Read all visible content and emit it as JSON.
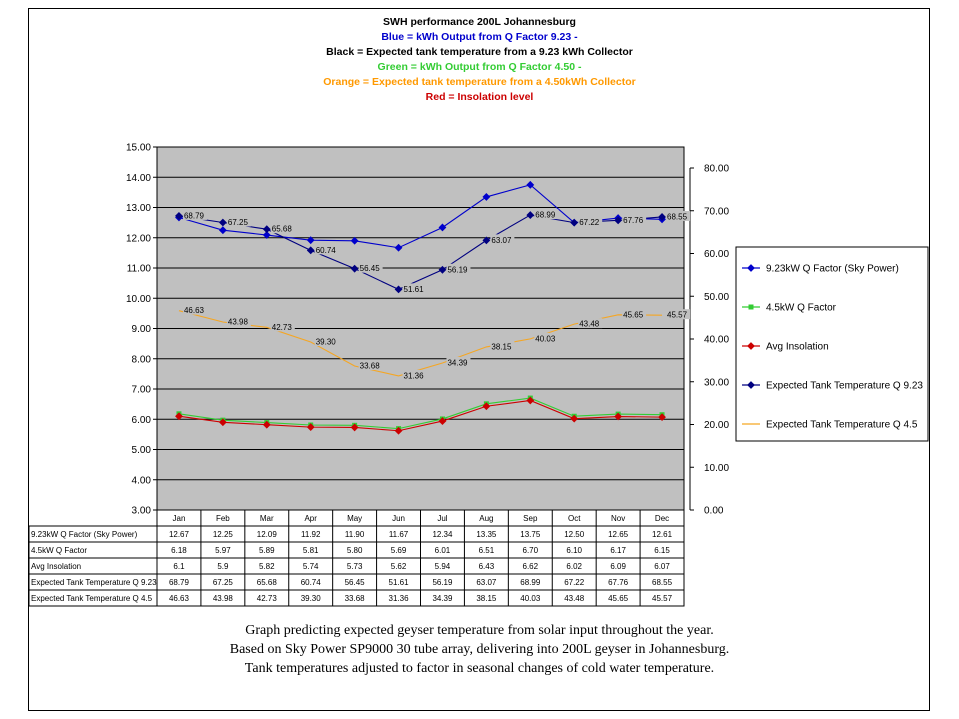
{
  "colors": {
    "blue": "#0000cc",
    "black": "#000000",
    "green": "#33cc33",
    "orange": "#ff9900",
    "red": "#cc0000",
    "plot_bg": "#c0c0c0",
    "navy": "#000080",
    "light_orange": "#f5a623"
  },
  "chart_data": {
    "type": "line",
    "title_lines": [
      {
        "text": "SWH performance 200L Johannesburg",
        "color": "black"
      },
      {
        "text": "Blue = kWh Output from Q Factor 9.23 -",
        "color": "blue"
      },
      {
        "text": "Black = Expected tank temperature from a 9.23 kWh Collector",
        "color": "black"
      },
      {
        "text": "Green = kWh Output from Q Factor 4.50 -",
        "color": "green"
      },
      {
        "text": "Orange = Expected tank temperature from a 4.50kWh Collector",
        "color": "orange"
      },
      {
        "text": "Red = Insolation level",
        "color": "red"
      }
    ],
    "categories": [
      "Jan",
      "Feb",
      "Mar",
      "Apr",
      "May",
      "Jun",
      "Jul",
      "Aug",
      "Sep",
      "Oct",
      "Nov",
      "Dec"
    ],
    "y_left": {
      "min": 3,
      "max": 15,
      "step": 1,
      "ticks": [
        "3.00",
        "4.00",
        "5.00",
        "6.00",
        "7.00",
        "8.00",
        "9.00",
        "10.00",
        "11.00",
        "12.00",
        "13.00",
        "14.00",
        "15.00"
      ]
    },
    "y_right": {
      "min": 0,
      "max": 80,
      "step": 10,
      "ticks": [
        "0.00",
        "10.00",
        "20.00",
        "30.00",
        "40.00",
        "50.00",
        "60.00",
        "70.00",
        "80.00"
      ]
    },
    "grid": true,
    "legend_position": "right",
    "series": [
      {
        "name": "9.23kW Q Factor (Sky Power)",
        "table_name": "9.23kW Q Factor (Sky Power)",
        "axis": "left",
        "color": "blue",
        "marker": "diamond",
        "values": [
          12.67,
          12.25,
          12.09,
          11.92,
          11.9,
          11.67,
          12.34,
          13.35,
          13.75,
          12.5,
          12.65,
          12.61
        ],
        "table_values": [
          "12.67",
          "12.25",
          "12.09",
          "11.92",
          "11.90",
          "11.67",
          "12.34",
          "13.35",
          "13.75",
          "12.50",
          "12.65",
          "12.61"
        ]
      },
      {
        "name": "4.5kW Q Factor",
        "table_name": "4.5kW Q Factor",
        "axis": "left",
        "color": "green",
        "marker": "square",
        "values": [
          6.18,
          5.97,
          5.89,
          5.81,
          5.8,
          5.69,
          6.01,
          6.51,
          6.7,
          6.1,
          6.17,
          6.15
        ],
        "table_values": [
          "6.18",
          "5.97",
          "5.89",
          "5.81",
          "5.80",
          "5.69",
          "6.01",
          "6.51",
          "6.70",
          "6.10",
          "6.17",
          "6.15"
        ]
      },
      {
        "name": "Avg Insolation",
        "table_name": "Avg Insolation",
        "axis": "left",
        "color": "red",
        "marker": "diamond",
        "values": [
          6.1,
          5.9,
          5.82,
          5.74,
          5.73,
          5.62,
          5.94,
          6.43,
          6.62,
          6.02,
          6.09,
          6.07
        ],
        "table_values": [
          "6.1",
          "5.9",
          "5.82",
          "5.74",
          "5.73",
          "5.62",
          "5.94",
          "6.43",
          "6.62",
          "6.02",
          "6.09",
          "6.07"
        ]
      },
      {
        "name": "Expected Tank Temperature Q 9.23",
        "table_name": "Expected Tank Temperature Q 9.23",
        "axis": "right",
        "color": "navy",
        "marker": "diamond",
        "values": [
          68.79,
          67.25,
          65.68,
          60.74,
          56.45,
          51.61,
          56.19,
          63.07,
          68.99,
          67.22,
          67.76,
          68.55
        ],
        "table_values": [
          "68.79",
          "67.25",
          "65.68",
          "60.74",
          "56.45",
          "51.61",
          "56.19",
          "63.07",
          "68.99",
          "67.22",
          "67.76",
          "68.55"
        ],
        "data_labels": [
          "68.79",
          "67.25",
          "65.68",
          "60.74",
          "56.45",
          "51.61",
          "56.19",
          "63.07",
          "68.99",
          "67.22",
          "67.76",
          "68.55"
        ]
      },
      {
        "name": "Expected Tank Temperature Q 4.5",
        "table_name": "Expected Tank Temperature Q 4.5",
        "axis": "right",
        "color": "light_orange",
        "marker": "none",
        "values": [
          46.63,
          43.98,
          42.73,
          39.3,
          33.68,
          31.36,
          34.39,
          38.15,
          40.03,
          43.48,
          45.65,
          45.57
        ],
        "table_values": [
          "46.63",
          "43.98",
          "42.73",
          "39.30",
          "33.68",
          "31.36",
          "34.39",
          "38.15",
          "40.03",
          "43.48",
          "45.65",
          "45.57"
        ],
        "data_labels": [
          "46.63",
          "43.98",
          "42.73",
          "39.30",
          "33.68",
          "31.36",
          "34.39",
          "38.15",
          "40.03",
          "43.48",
          "45.65",
          "45.57"
        ]
      }
    ]
  },
  "caption": [
    "Graph predicting expected geyser temperature from solar input throughout the year.",
    "Based on Sky Power SP9000 30 tube array, delivering into 200L geyser in Johannesburg.",
    "Tank temperatures adjusted to factor in seasonal changes of cold water temperature."
  ]
}
